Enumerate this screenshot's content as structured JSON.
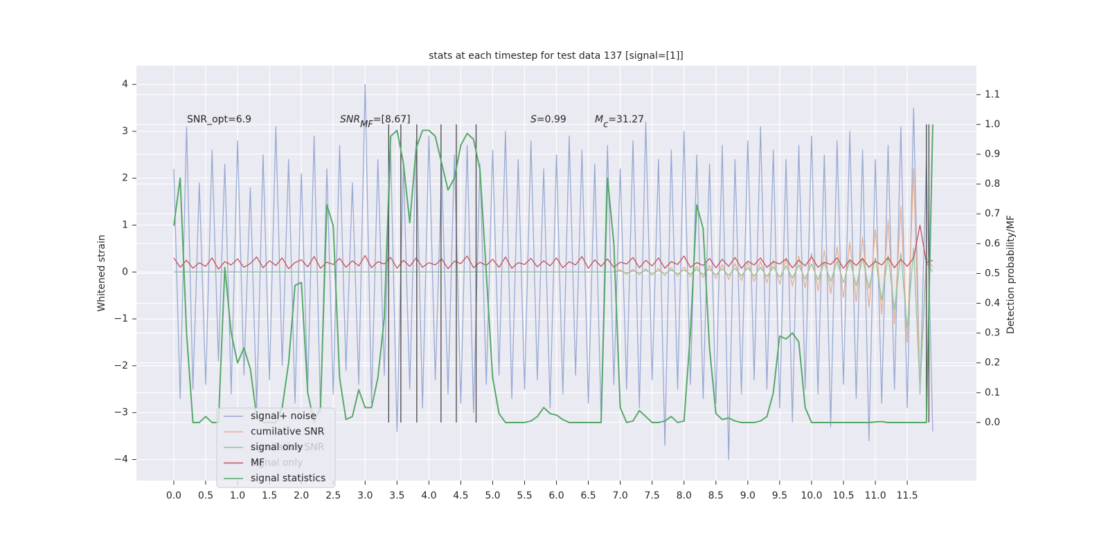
{
  "chart_data": {
    "type": "line",
    "title": "stats at each timestep for test data 137 [signal=[1]]",
    "ylabel": "Whitened strain",
    "y2label": "Detection probability/MF",
    "annotations": [
      "SNR_opt=6.9",
      [
        "SNR",
        "MF",
        "=[8.67]"
      ],
      [
        "S",
        "=0.99"
      ],
      [
        "M",
        "c",
        "=31.27"
      ]
    ],
    "x": [
      0,
      0.1,
      0.2,
      0.3,
      0.4,
      0.5,
      0.6,
      0.7,
      0.8,
      0.9,
      1,
      1.1,
      1.2,
      1.3,
      1.4,
      1.5,
      1.6,
      1.7,
      1.8,
      1.9,
      2,
      2.1,
      2.2,
      2.3,
      2.4,
      2.5,
      2.6,
      2.7,
      2.8,
      2.9,
      3,
      3.1,
      3.2,
      3.3,
      3.4,
      3.5,
      3.6,
      3.7,
      3.8,
      3.9,
      4,
      4.1,
      4.2,
      4.3,
      4.4,
      4.5,
      4.6,
      4.7,
      4.8,
      4.9,
      5,
      5.1,
      5.2,
      5.3,
      5.4,
      5.5,
      5.6,
      5.7,
      5.8,
      5.9,
      6,
      6.1,
      6.2,
      6.3,
      6.4,
      6.5,
      6.6,
      6.7,
      6.8,
      6.9,
      7,
      7.1,
      7.2,
      7.3,
      7.4,
      7.5,
      7.6,
      7.7,
      7.8,
      7.9,
      8,
      8.1,
      8.2,
      8.3,
      8.4,
      8.5,
      8.6,
      8.7,
      8.8,
      8.9,
      9,
      9.1,
      9.2,
      9.3,
      9.4,
      9.5,
      9.6,
      9.7,
      9.8,
      9.9,
      10,
      10.1,
      10.2,
      10.3,
      10.4,
      10.5,
      10.6,
      10.7,
      10.8,
      10.9,
      11,
      11.1,
      11.2,
      11.3,
      11.4,
      11.5,
      11.6,
      11.7,
      11.8,
      11.9
    ],
    "series": [
      {
        "name": "signal+ noise",
        "color": "#97a9d1",
        "values": [
          2.2,
          -2.7,
          3.1,
          -2.5,
          1.9,
          -2.4,
          2.6,
          -1.9,
          2.3,
          -2.6,
          2.8,
          -2.2,
          1.8,
          -2.9,
          2.5,
          -2.3,
          3.1,
          -2.0,
          2.4,
          -2.8,
          2.1,
          -2.5,
          2.9,
          -3.0,
          2.2,
          -2.6,
          2.7,
          -2.1,
          1.9,
          -2.4,
          4.0,
          -2.8,
          2.4,
          -2.2,
          2.6,
          -3.4,
          2.3,
          -2.5,
          2.8,
          -2.9,
          2.9,
          -2.3,
          2.2,
          -2.6,
          2.5,
          -2.8,
          2.7,
          -3.0,
          2.3,
          -2.4,
          2.6,
          -2.2,
          3.0,
          -2.7,
          2.4,
          -2.5,
          2.8,
          -2.3,
          2.2,
          -2.9,
          2.5,
          -2.6,
          2.9,
          -2.2,
          2.6,
          -2.8,
          2.3,
          -3.1,
          2.7,
          -2.4,
          2.2,
          -2.5,
          2.8,
          -2.9,
          3.2,
          -2.3,
          2.4,
          -3.7,
          2.6,
          -2.5,
          3.0,
          -2.4,
          2.5,
          -2.7,
          2.3,
          -2.8,
          2.7,
          -4.0,
          2.4,
          -2.6,
          2.8,
          -2.3,
          3.1,
          -2.5,
          2.6,
          -2.9,
          2.4,
          -3.2,
          2.7,
          -2.5,
          2.9,
          -2.6,
          2.5,
          -3.3,
          2.8,
          -2.4,
          3.0,
          -2.7,
          2.6,
          -3.6,
          2.4,
          -2.8,
          2.7,
          -2.5,
          3.1,
          -2.9,
          3.5,
          -2.6,
          2.4,
          -3.4
        ]
      },
      {
        "name": "cumilative SNR",
        "color": "#e8ad8c",
        "values": [
          0,
          0,
          0,
          0,
          0,
          0,
          0,
          0,
          0,
          0,
          0,
          0,
          0,
          0,
          0,
          0,
          0,
          0,
          0,
          0,
          0,
          0,
          0,
          0,
          0,
          0,
          0,
          0,
          0,
          0,
          0,
          0,
          0,
          0,
          0,
          0,
          0,
          0,
          0,
          0,
          0,
          0,
          0,
          0,
          0,
          0,
          0,
          0,
          0,
          0,
          0,
          0,
          0,
          0,
          0,
          0,
          0,
          0,
          0,
          0,
          0,
          0,
          0,
          0,
          0,
          0,
          0,
          0,
          0,
          0,
          0.05,
          -0.05,
          0.06,
          -0.06,
          0.07,
          -0.07,
          0.08,
          -0.08,
          0.09,
          -0.09,
          0.1,
          -0.1,
          0.12,
          -0.12,
          0.14,
          -0.14,
          0.16,
          -0.16,
          0.18,
          -0.18,
          0.2,
          -0.2,
          0.23,
          -0.23,
          0.26,
          -0.26,
          0.3,
          -0.3,
          0.34,
          -0.34,
          0.4,
          -0.4,
          0.46,
          -0.46,
          0.54,
          -0.54,
          0.63,
          -0.63,
          0.75,
          -0.75,
          0.9,
          -0.9,
          1.1,
          -1.1,
          1.4,
          -1.5,
          2.2,
          -2.5,
          0.3,
          0.1
        ]
      },
      {
        "name": "signal only",
        "color": "#8fc49d",
        "values": [
          0,
          0,
          0,
          0,
          0,
          0,
          0,
          0,
          0,
          0,
          0,
          0,
          0,
          0,
          0,
          0,
          0,
          0,
          0,
          0,
          0,
          0,
          0,
          0,
          0,
          0,
          0,
          0,
          0,
          0,
          0,
          0,
          0,
          0,
          0,
          0,
          0,
          0,
          0,
          0,
          0,
          0,
          0,
          0,
          0,
          0,
          0,
          0,
          0,
          0,
          0,
          0,
          0,
          0,
          0,
          0,
          0,
          0,
          0,
          0,
          0,
          0,
          0,
          0,
          0,
          0,
          0,
          0,
          0,
          0,
          0.02,
          -0.02,
          0.02,
          -0.02,
          0.03,
          -0.03,
          0.03,
          -0.03,
          0.04,
          -0.04,
          0.04,
          -0.04,
          0.05,
          -0.05,
          0.06,
          -0.06,
          0.07,
          -0.07,
          0.08,
          -0.08,
          0.09,
          -0.09,
          0.1,
          -0.1,
          0.11,
          -0.11,
          0.13,
          -0.13,
          0.15,
          -0.15,
          0.17,
          -0.17,
          0.2,
          -0.2,
          0.23,
          -0.23,
          0.26,
          -0.3,
          0.3,
          -0.35,
          0.3,
          -0.6,
          0.35,
          -0.8,
          0.4,
          -1.2,
          0.5,
          -2.5,
          0.2,
          0.0
        ]
      },
      {
        "name": "MF",
        "color": "#c44e52",
        "values": [
          0.3,
          0.1,
          0.25,
          0.08,
          0.2,
          0.12,
          0.3,
          0.06,
          0.22,
          0.15,
          0.28,
          0.1,
          0.18,
          0.32,
          0.09,
          0.24,
          0.14,
          0.3,
          0.07,
          0.2,
          0.26,
          0.11,
          0.33,
          0.08,
          0.21,
          0.16,
          0.29,
          0.1,
          0.24,
          0.13,
          0.35,
          0.09,
          0.22,
          0.17,
          0.31,
          0.08,
          0.25,
          0.12,
          0.3,
          0.1,
          0.2,
          0.15,
          0.28,
          0.07,
          0.23,
          0.18,
          0.34,
          0.09,
          0.21,
          0.14,
          0.27,
          0.1,
          0.32,
          0.08,
          0.2,
          0.16,
          0.29,
          0.11,
          0.24,
          0.13,
          0.3,
          0.09,
          0.22,
          0.15,
          0.33,
          0.08,
          0.26,
          0.12,
          0.28,
          0.1,
          0.21,
          0.17,
          0.31,
          0.09,
          0.25,
          0.13,
          0.3,
          0.08,
          0.22,
          0.16,
          0.34,
          0.1,
          0.2,
          0.14,
          0.29,
          0.09,
          0.27,
          0.12,
          0.31,
          0.08,
          0.23,
          0.15,
          0.3,
          0.1,
          0.22,
          0.17,
          0.28,
          0.09,
          0.25,
          0.13,
          0.32,
          0.1,
          0.21,
          0.16,
          0.3,
          0.08,
          0.26,
          0.14,
          0.29,
          0.1,
          0.23,
          0.15,
          0.31,
          0.09,
          0.27,
          0.12,
          0.3,
          1.0,
          0.2,
          0.25
        ]
      },
      {
        "name": "signal statistics",
        "color": "#55a868",
        "axis": "y2",
        "values": [
          0.66,
          0.82,
          0.3,
          0,
          0,
          0.02,
          0,
          0,
          0.52,
          0.3,
          0.2,
          0.25,
          0.18,
          0.02,
          0,
          0,
          0,
          0.05,
          0.2,
          0.46,
          0.47,
          0.1,
          0,
          0.05,
          0.73,
          0.66,
          0.15,
          0.01,
          0.02,
          0.11,
          0.05,
          0.05,
          0.15,
          0.35,
          0.96,
          0.98,
          0.87,
          0.67,
          0.92,
          0.98,
          0.98,
          0.96,
          0.87,
          0.78,
          0.82,
          0.93,
          0.97,
          0.95,
          0.85,
          0.5,
          0.15,
          0.03,
          0,
          0,
          0,
          0,
          0.005,
          0.02,
          0.05,
          0.03,
          0.025,
          0.01,
          0,
          0,
          0,
          0,
          0,
          0,
          0.82,
          0.6,
          0.05,
          0,
          0.005,
          0.04,
          0.02,
          0,
          0,
          0.005,
          0.02,
          0,
          0.005,
          0.3,
          0.73,
          0.65,
          0.25,
          0.03,
          0.01,
          0.015,
          0.005,
          0,
          0,
          0,
          0.005,
          0.02,
          0.1,
          0.29,
          0.28,
          0.3,
          0.27,
          0.05,
          0,
          0,
          0,
          0,
          0,
          0,
          0,
          0,
          0,
          0,
          0.002,
          0.003,
          0,
          0,
          0,
          0,
          0,
          0,
          0,
          1.0
        ]
      }
    ],
    "vlines": {
      "x": [
        3.37,
        3.56,
        3.81,
        4.19,
        4.43,
        4.74,
        11.8,
        11.84
      ],
      "ymin": 0,
      "ymax": 1,
      "color": "#444444"
    },
    "xlim": [
      -0.586,
      12.585
    ],
    "ylim": [
      -4.45,
      4.4
    ],
    "y2lim": [
      -0.195,
      1.197
    ],
    "xticks": [
      {
        "value": 0,
        "label": "0.0"
      },
      0.5,
      {
        "value": 1,
        "label": "1.0"
      },
      1.5,
      {
        "value": 2,
        "label": "2.0"
      },
      2.5,
      {
        "value": 3,
        "label": "3.0"
      },
      3.5,
      {
        "value": 4,
        "label": "4.0"
      },
      4.5,
      {
        "value": 5,
        "label": "5.0"
      },
      5.5,
      {
        "value": 6,
        "label": "6.0"
      },
      6.5,
      {
        "value": 7,
        "label": "7.0"
      },
      7.5,
      {
        "value": 8,
        "label": "8.0"
      },
      8.5,
      {
        "value": 9,
        "label": "9.0"
      },
      9.5,
      {
        "value": 10,
        "label": "10.0"
      },
      10.5,
      {
        "value": 11,
        "label": "11.0"
      },
      11.5
    ],
    "yticks": [
      {
        "value": -4,
        "label": "−4"
      },
      {
        "value": -3,
        "label": "−3"
      },
      {
        "value": -2,
        "label": "−2"
      },
      {
        "value": -1,
        "label": "−1"
      },
      0,
      1,
      2,
      3,
      4
    ],
    "y2ticks": [
      {
        "value": 0,
        "label": "0.0"
      },
      0.1,
      0.2,
      0.3,
      0.4,
      0.5,
      0.6,
      0.7,
      0.8,
      0.9,
      {
        "value": 1,
        "label": "1.0"
      },
      1.1
    ],
    "grid": true,
    "legend": "lower left"
  }
}
